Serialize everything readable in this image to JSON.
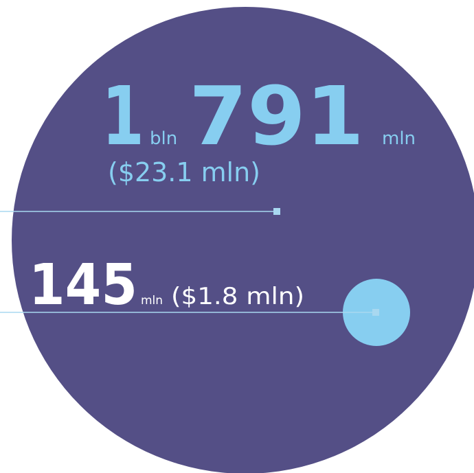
{
  "large": {
    "number_bln": "1",
    "unit_bln": "bln",
    "number_mln": "791",
    "unit_mln": "mln",
    "amount": "($23.1 mln)"
  },
  "small": {
    "number": "145",
    "unit": "mln",
    "amount": "($1.8 mln)"
  }
}
